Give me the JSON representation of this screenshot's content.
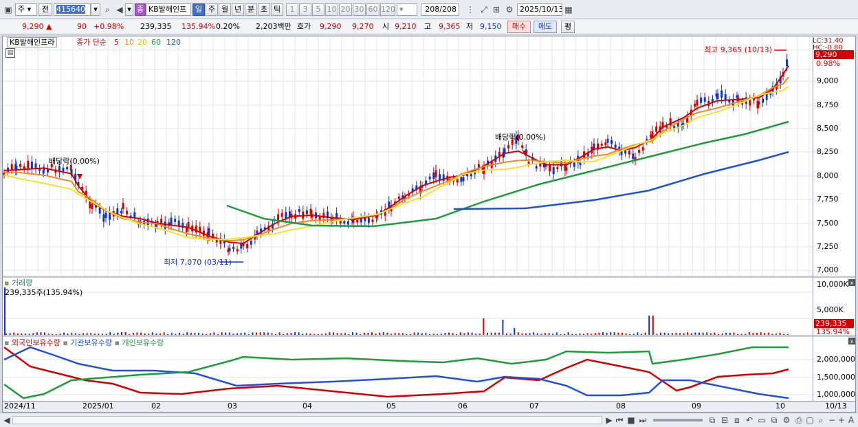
{
  "toolbar": {
    "period_combo": "주",
    "prev_label": "전",
    "code": "415640",
    "name": "KB발해인프",
    "name_badge": "종",
    "tabs": [
      "일",
      "주",
      "월",
      "년",
      "분",
      "초",
      "틱"
    ],
    "active_tab": "일",
    "intervals": [
      "1",
      "3",
      "5",
      "10",
      "20",
      "30",
      "60",
      "120"
    ],
    "count": "208",
    "count_total": "/208",
    "date": "2025/10/13"
  },
  "quote": {
    "price": "9,290",
    "change": "90",
    "change_pct": "+0.98%",
    "volume": "239,335",
    "volume_ratio": "135.94%",
    "turnover_rate": "0.20%",
    "amount": "2,203백만",
    "bid_label": "호가",
    "ask": "9,290",
    "bid": "9,270",
    "open_label": "시",
    "open": "9,210",
    "high_label": "고",
    "high": "9,365",
    "low_label": "저",
    "low": "9,150",
    "buy_button": "매수",
    "sell_button": "매도",
    "eval_button": "평"
  },
  "chart": {
    "legend_name": "KB발해인프라",
    "legend_ma_title": "종가 단순",
    "ma_periods": [
      "5",
      "10",
      "20",
      "60",
      "120"
    ],
    "ma_colors": [
      "#d40000",
      "#f08a1c",
      "#f5e22a",
      "#1f9a3c",
      "#2050d8"
    ],
    "lc_label": "LC:31.40",
    "hc_label": "HC:-0.80",
    "price_tag": "9,290",
    "pct_tag": "0.98%",
    "high_annotation": "최고 9,365 (10/13)",
    "low_annotation": "최저 7,070 (03/11)",
    "dividend_label_1": "배당락(0.00%)",
    "dividend_label_2": "배당락(0.00%)",
    "y_ticks": [
      "9,000",
      "8,750",
      "8,500",
      "8,250",
      "8,000",
      "7,750",
      "7,500",
      "7,250",
      "7,000"
    ],
    "volume_title": "거래량",
    "volume_readout": "239,335주(135.94%)",
    "volume_ticks": [
      "10,000K",
      "5,000K"
    ],
    "volume_tag": "239,335",
    "volume_pct_tag": "135.94%",
    "holders_titles": [
      "외국인보유수량",
      "기관보유수량",
      "개인보유수량"
    ],
    "holders_ticks": [
      "2,000,000",
      "1,500,000",
      "1,000,000"
    ],
    "x_ticks": [
      "2024/11",
      "2025/01",
      "02",
      "03",
      "04",
      "05",
      "06",
      "07",
      "08",
      "09",
      "10",
      "10/13"
    ]
  },
  "colors": {
    "up": "#d40000",
    "down": "#1034c8",
    "accent": "#3f6fc6"
  }
}
